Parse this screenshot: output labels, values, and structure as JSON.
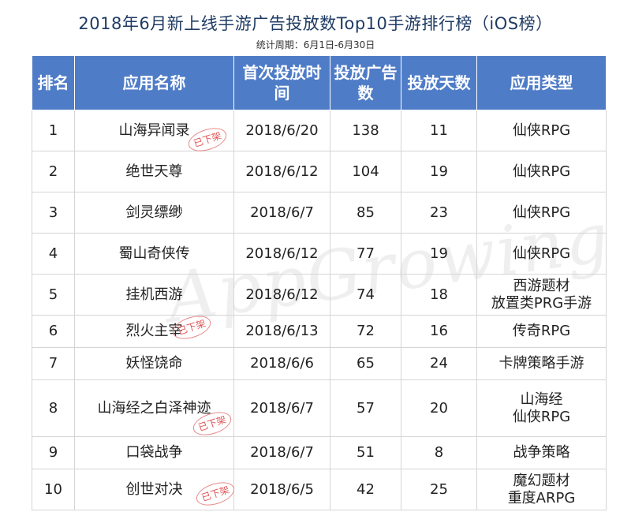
{
  "title": "2018年6月新上线手游广告投放数Top10手游排行榜（iOS榜）",
  "subtitle": "统计周期：6月1日-6月30日",
  "watermark": "AppGrowing",
  "headers": [
    "排名",
    "应用名称",
    "首次投放时间",
    "投放广告数",
    "投放天数",
    "应用类型"
  ],
  "rows": [
    {
      "rank": "1",
      "name": "山海异闻录",
      "date": "2018/6/20",
      "ads": "138",
      "days": "11",
      "type": "仙侠RPG",
      "tag": "已下架"
    },
    {
      "rank": "2",
      "name": "绝世天尊",
      "date": "2018/6/12",
      "ads": "104",
      "days": "19",
      "type": "仙侠RPG"
    },
    {
      "rank": "3",
      "name": "剑灵缥缈",
      "date": "2018/6/7",
      "ads": "85",
      "days": "23",
      "type": "仙侠RPG"
    },
    {
      "rank": "4",
      "name": "蜀山奇侠传",
      "date": "2018/6/12",
      "ads": "77",
      "days": "19",
      "type": "仙侠RPG"
    },
    {
      "rank": "5",
      "name": "挂机西游",
      "date": "2018/6/12",
      "ads": "74",
      "days": "18",
      "type": "西游题材\n放置类PRG手游"
    },
    {
      "rank": "6",
      "name": "烈火主宰",
      "date": "2018/6/13",
      "ads": "72",
      "days": "16",
      "type": "传奇RPG",
      "tag": "已下架"
    },
    {
      "rank": "7",
      "name": "妖怪饶命",
      "date": "2018/6/6",
      "ads": "65",
      "days": "24",
      "type": "卡牌策略手游"
    },
    {
      "rank": "8",
      "name": "山海经之白泽神迹",
      "date": "2018/6/7",
      "ads": "57",
      "days": "20",
      "type": "山海经\n仙侠RPG",
      "tag": "已下架"
    },
    {
      "rank": "9",
      "name": "口袋战争",
      "date": "2018/6/7",
      "ads": "51",
      "days": "8",
      "type": "战争策略"
    },
    {
      "rank": "10",
      "name": "创世对决",
      "date": "2018/6/5",
      "ads": "42",
      "days": "25",
      "type": "魔幻题材\n重度ARPG",
      "tag": "已下架"
    }
  ]
}
